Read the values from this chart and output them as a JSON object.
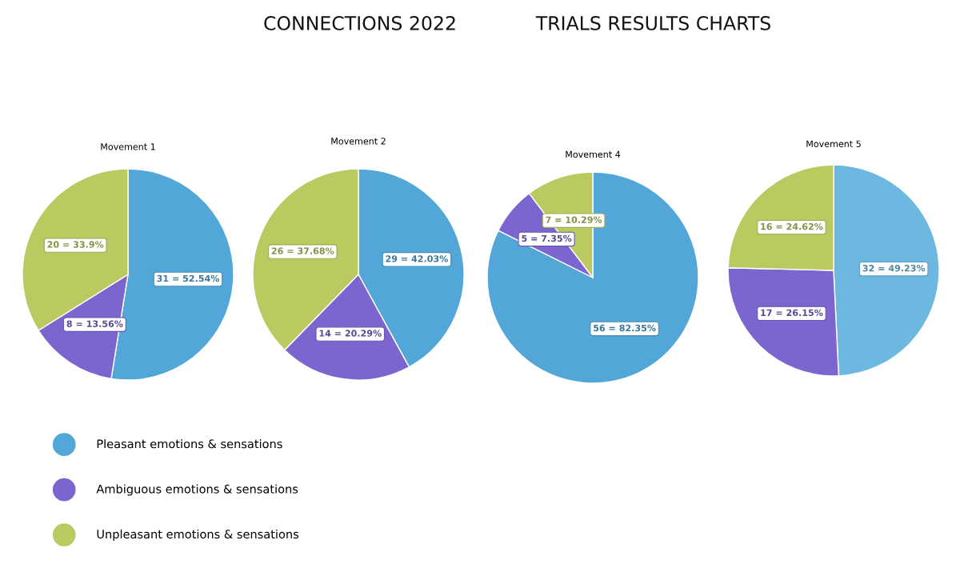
{
  "chart_data": [
    {
      "type": "pie",
      "title": "Movement 1",
      "categories": [
        "Pleasant emotions & sensations",
        "Ambiguous emotions & sensations",
        "Unpleasant emotions & sensations"
      ],
      "values": [
        31,
        8,
        20
      ],
      "colors": [
        "#52a7d8",
        "#7d65cf",
        "#bbca60"
      ],
      "value_labels": [
        "31 = 52.54%",
        "8 = 13.56%",
        "20 = 33.9%"
      ],
      "legend": "bottom right",
      "annotations": [
        "CONNECTIONS 2022",
        "TRIALS RESULTS CHARTS"
      ]
    },
    {
      "type": "pie",
      "title": "Movement 2",
      "categories": [
        null,
        null,
        null
      ],
      "values": [
        29,
        14,
        26
      ],
      "colors": [
        "#52a7d8",
        "#7d65cf",
        "#bbca60"
      ],
      "value_labels": [
        "29 = 42.03%",
        "14 = 20.29%",
        "26 = 37.68%"
      ]
    },
    {
      "type": "pie",
      "title": "Movement 4",
      "categories": [
        null,
        null,
        null
      ],
      "values": [
        56,
        5,
        7
      ],
      "colors": [
        "#52a7d8",
        "#7d65cf",
        "#bbca60"
      ],
      "value_labels": [
        "56 = 82.35%",
        "5 = 7.35%",
        "7 = 10.29%"
      ]
    },
    {
      "type": "pie",
      "title": "Movement 5",
      "categories": [
        null,
        null,
        null
      ],
      "values": [
        32,
        17,
        16
      ],
      "colors": [
        "#6cb8e0",
        "#7d65cf",
        "#bbca60"
      ],
      "value_labels": [
        "32 = 49.23%",
        "17 = 26.15%",
        "16 = 24.62%"
      ]
    }
  ]
}
